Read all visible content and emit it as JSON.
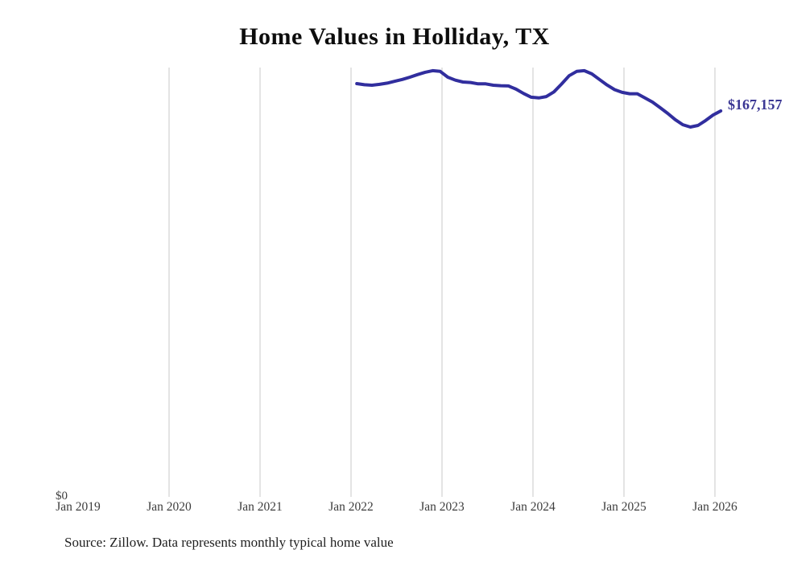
{
  "title": "Home Values in Holliday, TX",
  "source_note": "Source: Zillow. Data represents monthly typical home value",
  "latest_value_label": "$167,157",
  "y_axis": {
    "zero_label": "$0"
  },
  "x_axis": {
    "ticks": [
      {
        "label": "Jan 2019",
        "gridline": false
      },
      {
        "label": "Jan 2020",
        "gridline": true
      },
      {
        "label": "Jan 2021",
        "gridline": true
      },
      {
        "label": "Jan 2022",
        "gridline": true
      },
      {
        "label": "Jan 2023",
        "gridline": true
      },
      {
        "label": "Jan 2024",
        "gridline": true
      },
      {
        "label": "Jan 2025",
        "gridline": true
      },
      {
        "label": "Jan 2026",
        "gridline": true
      }
    ]
  },
  "colors": {
    "line": "#312e9e",
    "latest_label": "#3b3794",
    "gridline": "#c9c9c9",
    "axis_label": "#3d3d3d",
    "title": "#0d0d0d",
    "source": "#1f1f1f",
    "background": "#ffffff"
  },
  "chart_data": {
    "type": "line",
    "title": "Home Values in Holliday, TX",
    "unit": "USD",
    "xlabel": "",
    "ylabel": "",
    "ylim": [
      0,
      186000
    ],
    "x_axis_range": [
      "Jan 2019",
      "Feb 2026"
    ],
    "grid": "vertical-yearly",
    "legend": "none",
    "end_annotation": "$167,157",
    "x": [
      "Jan 2022",
      "Feb 2022",
      "Mar 2022",
      "Apr 2022",
      "May 2022",
      "Jun 2022",
      "Jul 2022",
      "Aug 2022",
      "Sep 2022",
      "Oct 2022",
      "Nov 2022",
      "Dec 2022",
      "Jan 2023",
      "Feb 2023",
      "Mar 2023",
      "Apr 2023",
      "May 2023",
      "Jun 2023",
      "Jul 2023",
      "Aug 2023",
      "Sep 2023",
      "Oct 2023",
      "Nov 2023",
      "Dec 2023",
      "Jan 2024",
      "Feb 2024",
      "Mar 2024",
      "Apr 2024",
      "May 2024",
      "Jun 2024",
      "Jul 2024",
      "Aug 2024",
      "Sep 2024",
      "Oct 2024",
      "Nov 2024",
      "Dec 2024",
      "Jan 2025",
      "Feb 2025",
      "Mar 2025",
      "Apr 2025",
      "May 2025",
      "Jun 2025",
      "Jul 2025",
      "Aug 2025",
      "Sep 2025",
      "Oct 2025",
      "Nov 2025",
      "Dec 2025",
      "Jan 2026"
    ],
    "values": [
      179000,
      178500,
      178300,
      178700,
      179200,
      180000,
      180800,
      181800,
      182900,
      183900,
      184600,
      184300,
      181800,
      180500,
      179700,
      179500,
      178900,
      178900,
      178300,
      178100,
      178000,
      176600,
      174700,
      173100,
      172800,
      173400,
      175400,
      178800,
      182400,
      184300,
      184600,
      183200,
      180800,
      178400,
      176400,
      175200,
      174600,
      174600,
      172800,
      171000,
      168600,
      166100,
      163400,
      161200,
      160200,
      160900,
      163000,
      165400,
      167157
    ]
  }
}
